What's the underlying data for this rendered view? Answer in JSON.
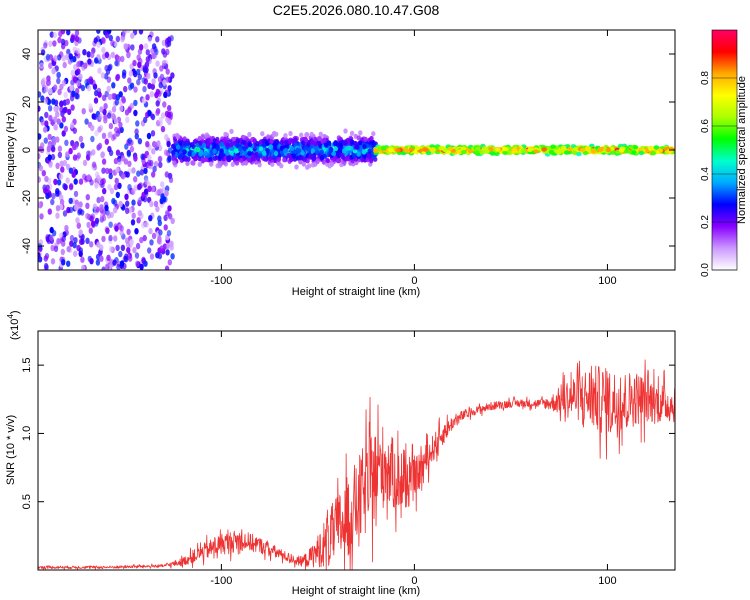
{
  "figure_title": "C2E5.2026.080.10.47.G08",
  "chart_data": [
    {
      "type": "heatmap",
      "title": "C2E5.2026.080.10.47.G08",
      "xlabel": "Height of straight line (km)",
      "ylabel": "Frequency (Hz)",
      "xlim": [
        -195,
        135
      ],
      "ylim": [
        -50,
        50
      ],
      "xticks": [
        -100,
        0,
        100
      ],
      "xtick_labels": [
        "-100",
        "0",
        "100"
      ],
      "yticks": [
        -40,
        -20,
        0,
        20,
        40
      ],
      "ytick_labels": [
        "-40",
        "-20",
        "0",
        "20",
        "40"
      ],
      "colorbar": {
        "label": "Normalized spectral amplitude",
        "range": [
          0,
          1
        ],
        "ticks": [
          0.0,
          0.2,
          0.4,
          0.6,
          0.8
        ],
        "tick_labels": [
          "0.0",
          "0.2",
          "0.4",
          "0.6",
          "0.8"
        ],
        "colormap": [
          "#ffffff",
          "#cc99ff",
          "#8800ff",
          "#0000ff",
          "#00aaff",
          "#00ffcc",
          "#00ff00",
          "#aaff00",
          "#ffff00",
          "#ffaa00",
          "#ff0000",
          "#ff0066"
        ]
      },
      "description_regions": [
        {
          "x_range": [
            -195,
            -125
          ],
          "freq_spread": 50,
          "amplitude": [
            0.05,
            0.3
          ]
        },
        {
          "x_range": [
            -125,
            -20
          ],
          "freq_spread": 6,
          "amplitude": [
            0.1,
            0.5
          ]
        },
        {
          "x_range": [
            -20,
            135
          ],
          "freq_spread": 2,
          "amplitude": [
            0.4,
            1.0
          ]
        }
      ]
    },
    {
      "type": "line",
      "xlabel": "Height of straight line (km)",
      "ylabel": "SNR (10 * v/v)",
      "y_multiplier": "(x10",
      "y_multiplier_exp": "4",
      "y_multiplier_close": ")",
      "xlim": [
        -195,
        135
      ],
      "ylim": [
        0,
        1.75
      ],
      "xticks": [
        -100,
        0,
        100
      ],
      "xtick_labels": [
        "-100",
        "0",
        "100"
      ],
      "yticks": [
        0.5,
        1.0,
        1.5
      ],
      "ytick_labels": [
        "0.5",
        "1.0",
        "1.5"
      ],
      "series": [
        {
          "name": "SNR",
          "color": "#ee3333",
          "x": [
            -195,
            -160,
            -130,
            -120,
            -110,
            -100,
            -90,
            -80,
            -70,
            -60,
            -55,
            -50,
            -45,
            -40,
            -35,
            -30,
            -25,
            -20,
            -15,
            -10,
            -5,
            0,
            5,
            10,
            15,
            20,
            25,
            30,
            35,
            40,
            45,
            50,
            55,
            60,
            65,
            70,
            75,
            80,
            85,
            90,
            95,
            100,
            105,
            110,
            115,
            120,
            125,
            130,
            135
          ],
          "y": [
            0.02,
            0.02,
            0.03,
            0.06,
            0.13,
            0.19,
            0.22,
            0.18,
            0.12,
            0.06,
            0.08,
            0.14,
            0.22,
            0.3,
            0.38,
            0.48,
            0.6,
            0.7,
            0.78,
            0.68,
            0.62,
            0.66,
            0.78,
            0.9,
            1.0,
            1.08,
            1.13,
            1.16,
            1.18,
            1.2,
            1.21,
            1.22,
            1.22,
            1.22,
            1.22,
            1.22,
            1.24,
            1.26,
            1.27,
            1.27,
            1.25,
            1.23,
            1.22,
            1.24,
            1.26,
            1.25,
            1.23,
            1.22,
            1.2
          ],
          "noise_amplitude": [
            0.01,
            0.01,
            0.01,
            0.03,
            0.06,
            0.08,
            0.08,
            0.06,
            0.04,
            0.03,
            0.06,
            0.12,
            0.2,
            0.25,
            0.3,
            0.32,
            0.35,
            0.35,
            0.3,
            0.25,
            0.2,
            0.15,
            0.12,
            0.1,
            0.08,
            0.05,
            0.04,
            0.03,
            0.03,
            0.03,
            0.03,
            0.03,
            0.03,
            0.03,
            0.03,
            0.05,
            0.1,
            0.15,
            0.18,
            0.22,
            0.25,
            0.25,
            0.25,
            0.22,
            0.2,
            0.18,
            0.16,
            0.14,
            0.12
          ]
        }
      ]
    }
  ]
}
